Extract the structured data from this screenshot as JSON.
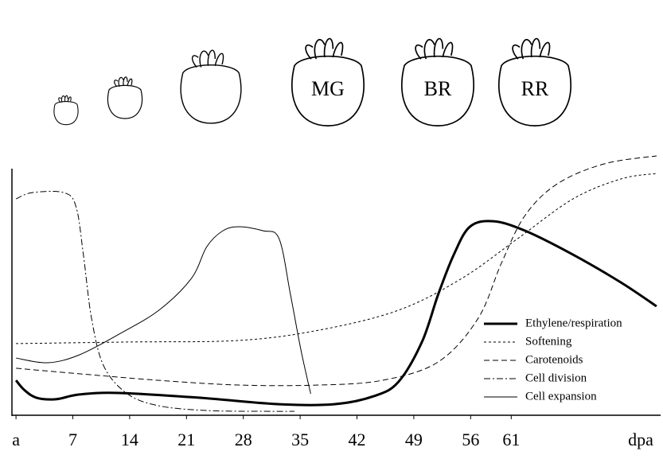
{
  "chart_data": {
    "type": "line",
    "annotations": [
      "MG",
      "BR",
      "RR"
    ],
    "x_label": "dpa",
    "xlim": [
      -0.5,
      79.4
    ],
    "ylim": [
      0,
      100
    ],
    "xticks": [
      {
        "value": 0,
        "label": "a"
      },
      7,
      14,
      21,
      28,
      35,
      42,
      49,
      56,
      61
    ],
    "series": [
      {
        "name": "Ethylene/respiration",
        "color": "#000",
        "dash": "solid",
        "width": 3,
        "x": [
          0,
          1,
          2.5,
          4.9,
          7.8,
          12.7,
          22.5,
          32.4,
          39.2,
          44.1,
          47.1,
          50,
          52,
          53.9,
          55.9,
          58.8,
          62.7,
          68.6,
          74.5,
          78.9
        ],
        "values": [
          13.3,
          9.7,
          6.7,
          6.1,
          7.9,
          8.5,
          6.7,
          4.2,
          4.2,
          7.3,
          12.7,
          27.9,
          46,
          61,
          71.8,
          73.9,
          70.3,
          61.2,
          50.6,
          41.5
        ]
      },
      {
        "name": "Softening",
        "color": "#000",
        "dash": "dotted",
        "width": 1,
        "x": [
          0,
          13.7,
          27.5,
          37.3,
          47.1,
          54.9,
          61.8,
          68.6,
          74.5,
          78.9
        ],
        "values": [
          27.3,
          27.9,
          28.5,
          32.4,
          40,
          52.1,
          67.3,
          82.4,
          90,
          92.1
        ]
      },
      {
        "name": "Carotenoids",
        "color": "#000",
        "dash": "dashed",
        "width": 1,
        "x": [
          0,
          7.8,
          17.6,
          27.5,
          37.3,
          45.1,
          52,
          56.9,
          59.8,
          62.7,
          66.7,
          72.5,
          78.9
        ],
        "values": [
          17.9,
          15.8,
          13.3,
          11.5,
          11.5,
          13.3,
          20.3,
          36.8,
          58,
          76.1,
          88.2,
          95.8,
          98.8
        ]
      },
      {
        "name": "Cell division",
        "color": "#000",
        "dash": "dashdot",
        "width": 1,
        "x": [
          0,
          2,
          5.9,
          7.4,
          8.3,
          9.3,
          10.8,
          13.7,
          17.6,
          23.5,
          30.4,
          34.3
        ],
        "values": [
          82.4,
          84.8,
          84.8,
          79.4,
          61.2,
          37,
          18.8,
          8.2,
          3.6,
          1.8,
          1.5,
          1.5
        ]
      },
      {
        "name": "Cell expansion",
        "color": "#000",
        "dash": "solid",
        "width": 1,
        "x": [
          0,
          3.9,
          7.8,
          12.7,
          17.6,
          21.6,
          23.5,
          25.5,
          27.5,
          30.4,
          32.4,
          33.8,
          35.1,
          36.3
        ],
        "values": [
          21.8,
          20,
          23,
          30.9,
          40,
          52.1,
          64.2,
          70.3,
          71.8,
          70.3,
          67.3,
          46.1,
          24.8,
          8.2
        ]
      }
    ]
  }
}
